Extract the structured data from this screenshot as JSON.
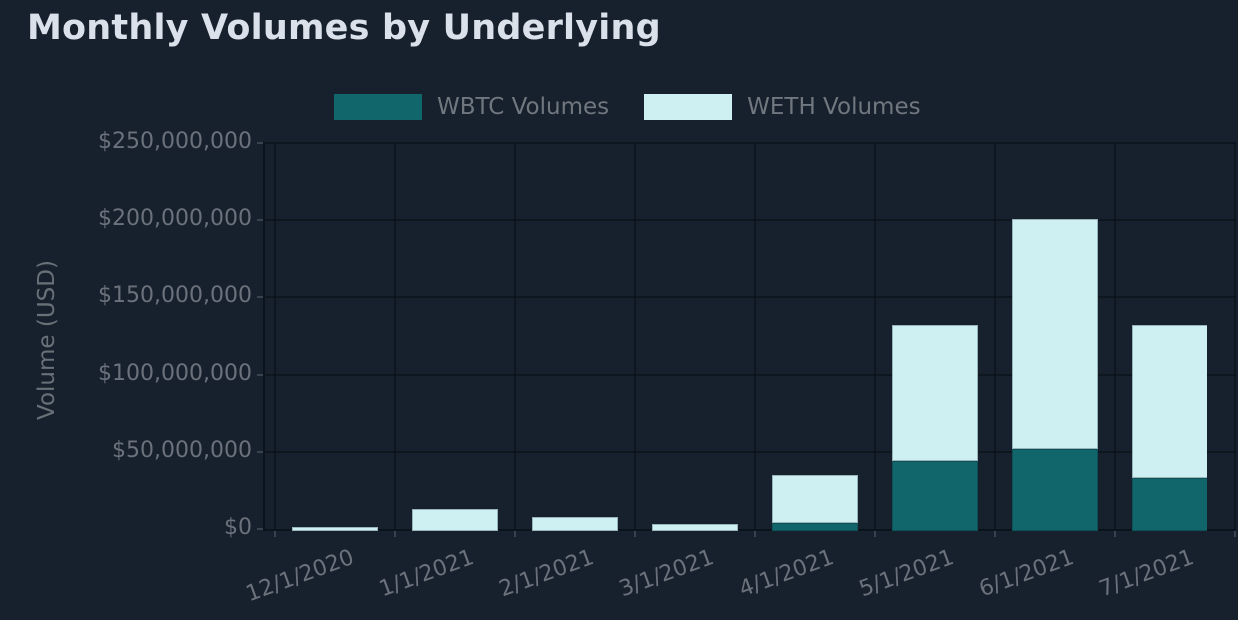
{
  "title": "Monthly Volumes by Underlying",
  "legend": [
    {
      "label": "WBTC Volumes",
      "color": "#11666b"
    },
    {
      "label": "WETH Volumes",
      "color": "#cff0f3"
    }
  ],
  "chart_data": {
    "type": "bar",
    "stacked": true,
    "title": "Monthly Volumes by Underlying",
    "categories": [
      "12/1/2020",
      "1/1/2021",
      "2/1/2021",
      "3/1/2021",
      "4/1/2021",
      "5/1/2021",
      "6/1/2021",
      "7/1/2021"
    ],
    "series": [
      {
        "name": "WBTC Volumes",
        "color": "#11666b",
        "values": [
          0,
          0,
          0,
          0,
          4000000,
          44000000,
          52000000,
          33000000
        ]
      },
      {
        "name": "WETH Volumes",
        "color": "#cff0f3",
        "values": [
          1500000,
          13000000,
          8000000,
          3500000,
          31000000,
          88000000,
          149000000,
          99000000
        ]
      }
    ],
    "totals": [
      1500000,
      13000000,
      8000000,
      3500000,
      35000000,
      132000000,
      201000000,
      132000000
    ],
    "xlabel": "",
    "ylabel": "Volume (USD)",
    "ylim": [
      0,
      250000000
    ],
    "ytick_step": 50000000,
    "ytick_labels": [
      "$0",
      "$50,000,000",
      "$100,000,000",
      "$150,000,000",
      "$200,000,000",
      "$250,000,000"
    ],
    "grid": true,
    "legend_position": "top",
    "x_label_rotation_deg": -20
  },
  "colors": {
    "background": "#17202d",
    "wbtc": "#11666b",
    "weth": "#cff0f3",
    "title_text": "#dbe1ea",
    "axis_text": "#6c727c",
    "gridline": "rgba(8,14,22,0.55)",
    "axis_line": "#0b131d"
  }
}
